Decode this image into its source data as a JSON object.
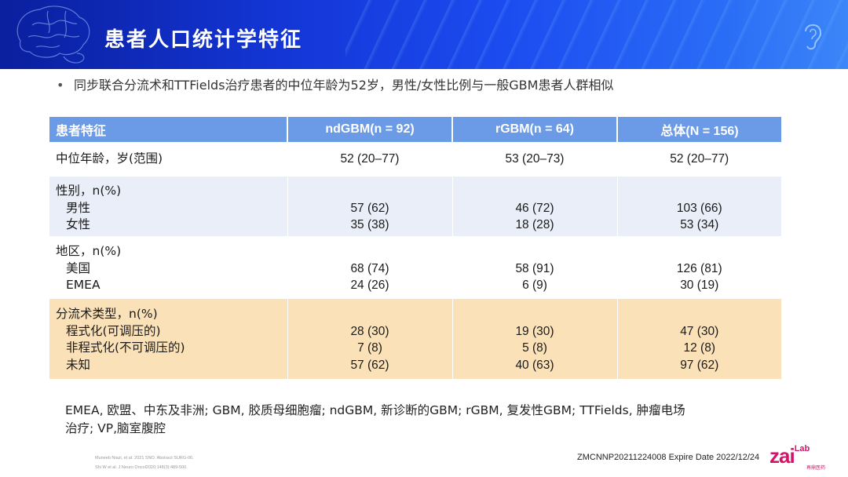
{
  "slide": {
    "title": "患者人口统计学特征",
    "bullet": "同步联合分流术和TTFields治疗患者的中位年龄为52岁，男性/女性比例与一般GBM患者人群相似"
  },
  "table": {
    "headers": [
      "患者特征",
      "ndGBM(n = 92)",
      "rGBM(n = 64)",
      "总体(N = 156)"
    ],
    "median_age": {
      "label": "中位年龄，岁(范围)",
      "values": [
        "52 (20–77)",
        "53 (20–73)",
        "52 (20–77)"
      ]
    },
    "sex": {
      "label": "性别，n(%)",
      "rows": [
        {
          "label": "男性",
          "values": [
            "57 (62)",
            "46 (72)",
            "103 (66)"
          ]
        },
        {
          "label": "女性",
          "values": [
            "35 (38)",
            "18 (28)",
            "53 (34)"
          ]
        }
      ]
    },
    "region": {
      "label": "地区，n(%)",
      "rows": [
        {
          "label": "美国",
          "values": [
            "68 (74)",
            "58 (91)",
            "126 (81)"
          ]
        },
        {
          "label": "EMEA",
          "values": [
            "24 (26)",
            "6 (9)",
            "30 (19)"
          ]
        }
      ]
    },
    "shunt": {
      "label": "分流术类型，n(%)",
      "rows": [
        {
          "label": "程式化(可调压的)",
          "values": [
            "28 (30)",
            "19 (30)",
            "47 (30)"
          ]
        },
        {
          "label": "非程式化(不可调压的)",
          "values": [
            "7 (8)",
            "5 (8)",
            "12 (8)"
          ]
        },
        {
          "label": "未知",
          "values": [
            "57 (62)",
            "40 (63)",
            "97 (62)"
          ]
        }
      ]
    }
  },
  "footnote": {
    "line1": "EMEA, 欧盟、中东及非洲; GBM, 胶质母细胞瘤; ndGBM, 新诊断的GBM; rGBM, 复发性GBM; TTFields, 肿瘤电场",
    "line2": "治疗; VP,脑室腹腔"
  },
  "references": [
    "Muneeb Niazi, et al. 2021 SNO. Abstract SURG-06.",
    "Shi W et al. J Neuro Oncol2020;148(3):489-500."
  ],
  "expire_text": "ZMCNNP20211224008 Expire Date 2022/12/24",
  "logo": {
    "main": "zai",
    "sup": "Lab",
    "cn": "再鼎医药"
  },
  "colors": {
    "banner": "#1437d8",
    "header": "#6b9ae6",
    "row_blue": "#e9eef8",
    "row_orange": "#fbe1b8",
    "logo": "#d4146a"
  },
  "icons": [
    "brain-icon",
    "ear-icon"
  ]
}
